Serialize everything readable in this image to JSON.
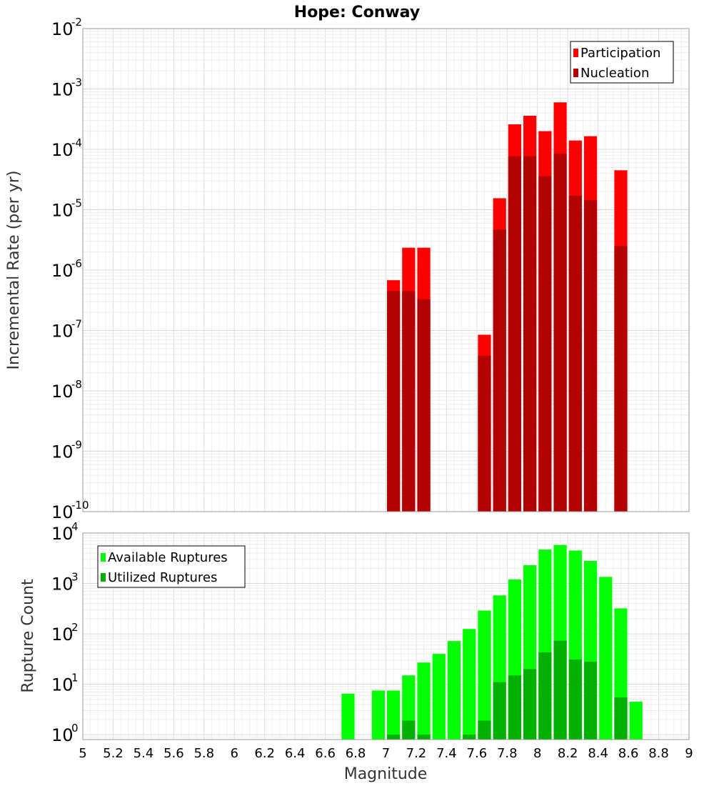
{
  "chart_data": [
    {
      "type": "bar",
      "title": "Hope: Conway",
      "xlabel": "",
      "ylabel": "Incremental Rate (per yr)",
      "yscale": "log",
      "xlim": [
        5,
        9
      ],
      "ylim": [
        1e-10,
        0.01
      ],
      "ytick_exponents": [
        -10,
        -9,
        -8,
        -7,
        -6,
        -5,
        -4,
        -3,
        -2
      ],
      "bar_width": 0.1,
      "grid": true,
      "legend_position": "top-right",
      "series": [
        {
          "name": "Participation",
          "color": "#ff0000",
          "points": [
            {
              "x": 7.05,
              "y": 6.8e-07
            },
            {
              "x": 7.15,
              "y": 2.35e-06
            },
            {
              "x": 7.25,
              "y": 2.35e-06
            },
            {
              "x": 7.65,
              "y": 8.5e-08
            },
            {
              "x": 7.75,
              "y": 1.55e-05
            },
            {
              "x": 7.85,
              "y": 0.00026
            },
            {
              "x": 7.95,
              "y": 0.00036
            },
            {
              "x": 8.05,
              "y": 0.0002
            },
            {
              "x": 8.15,
              "y": 0.0006
            },
            {
              "x": 8.25,
              "y": 0.00014
            },
            {
              "x": 8.35,
              "y": 0.000165
            },
            {
              "x": 8.55,
              "y": 4.5e-05
            }
          ]
        },
        {
          "name": "Nucleation",
          "color": "#b30000",
          "points": [
            {
              "x": 7.05,
              "y": 4.5e-07
            },
            {
              "x": 7.15,
              "y": 4.5e-07
            },
            {
              "x": 7.25,
              "y": 3.3e-07
            },
            {
              "x": 7.65,
              "y": 3.8e-08
            },
            {
              "x": 7.75,
              "y": 4.7e-06
            },
            {
              "x": 7.85,
              "y": 7.7e-05
            },
            {
              "x": 7.95,
              "y": 7.7e-05
            },
            {
              "x": 8.05,
              "y": 3.6e-05
            },
            {
              "x": 8.15,
              "y": 8.5e-05
            },
            {
              "x": 8.25,
              "y": 1.7e-05
            },
            {
              "x": 8.35,
              "y": 1.45e-05
            },
            {
              "x": 8.55,
              "y": 2.5e-06
            }
          ]
        }
      ]
    },
    {
      "type": "bar",
      "title": "",
      "xlabel": "Magnitude",
      "ylabel": "Rupture Count",
      "yscale": "log",
      "xlim": [
        5,
        9
      ],
      "ylim": [
        0.8,
        10000
      ],
      "ytick_exponents": [
        0,
        1,
        2,
        3,
        4
      ],
      "xticks": [
        "5",
        "5.2",
        "5.4",
        "5.6",
        "5.8",
        "6",
        "6.2",
        "6.4",
        "6.6",
        "6.8",
        "7",
        "7.2",
        "7.4",
        "7.6",
        "7.8",
        "8",
        "8.2",
        "8.4",
        "8.6",
        "8.8",
        "9"
      ],
      "bar_width": 0.1,
      "grid": true,
      "legend_position": "top-left",
      "series": [
        {
          "name": "Available Ruptures",
          "color": "#00ff00",
          "points": [
            {
              "x": 6.75,
              "y": 6.5
            },
            {
              "x": 6.95,
              "y": 7.5
            },
            {
              "x": 7.05,
              "y": 7.5
            },
            {
              "x": 7.15,
              "y": 15
            },
            {
              "x": 7.25,
              "y": 27
            },
            {
              "x": 7.35,
              "y": 40
            },
            {
              "x": 7.45,
              "y": 72
            },
            {
              "x": 7.55,
              "y": 125
            },
            {
              "x": 7.65,
              "y": 290
            },
            {
              "x": 7.75,
              "y": 580
            },
            {
              "x": 7.85,
              "y": 1200
            },
            {
              "x": 7.95,
              "y": 2300
            },
            {
              "x": 8.05,
              "y": 4700
            },
            {
              "x": 8.15,
              "y": 5800
            },
            {
              "x": 8.25,
              "y": 4500
            },
            {
              "x": 8.35,
              "y": 2800
            },
            {
              "x": 8.45,
              "y": 1350
            },
            {
              "x": 8.55,
              "y": 320
            },
            {
              "x": 8.65,
              "y": 4.5
            }
          ]
        },
        {
          "name": "Utilized Ruptures",
          "color": "#00b000",
          "points": [
            {
              "x": 7.05,
              "y": 1
            },
            {
              "x": 7.15,
              "y": 1.9
            },
            {
              "x": 7.25,
              "y": 1
            },
            {
              "x": 7.55,
              "y": 1
            },
            {
              "x": 7.65,
              "y": 1.9
            },
            {
              "x": 7.75,
              "y": 11
            },
            {
              "x": 7.85,
              "y": 15
            },
            {
              "x": 7.95,
              "y": 20
            },
            {
              "x": 8.05,
              "y": 43
            },
            {
              "x": 8.15,
              "y": 73
            },
            {
              "x": 8.25,
              "y": 31
            },
            {
              "x": 8.35,
              "y": 28
            },
            {
              "x": 8.55,
              "y": 5.5
            }
          ]
        }
      ]
    }
  ]
}
